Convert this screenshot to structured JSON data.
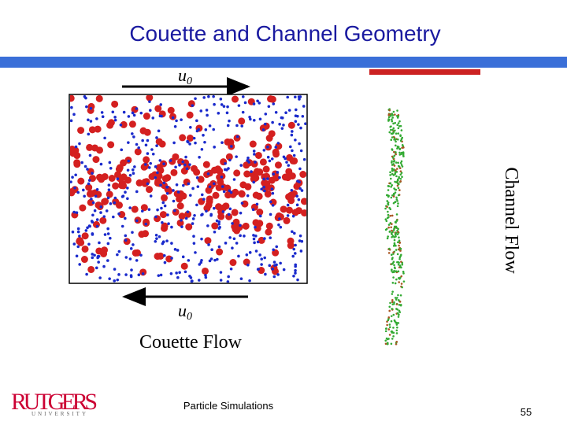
{
  "header": {
    "title": "Couette and Channel Geometry"
  },
  "figure": {
    "top_velocity": {
      "symbol": "u",
      "subscript": "0"
    },
    "bottom_velocity": {
      "symbol": "u",
      "subscript": "0"
    },
    "couette_caption": "Couette Flow",
    "channel_caption": "Channel Flow"
  },
  "footer": {
    "logo_name": "RUTGERS",
    "logo_sub": "UNIVERSITY",
    "course": "Particle Simulations",
    "page": "55"
  }
}
